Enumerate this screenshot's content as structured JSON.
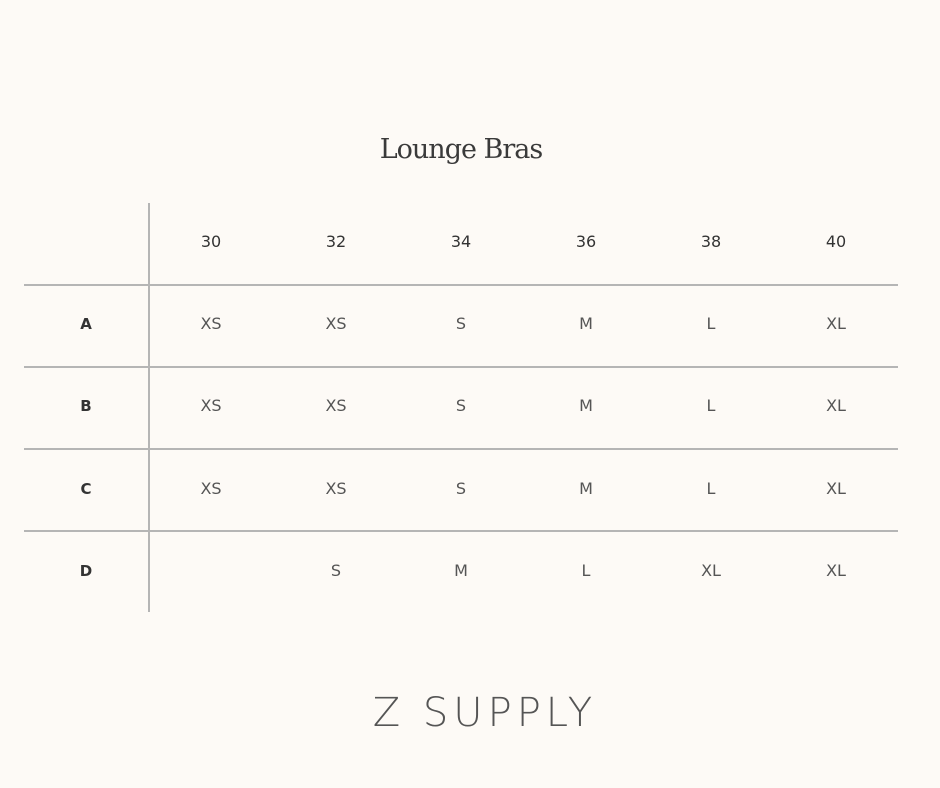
{
  "title": "Lounge Bras",
  "table": {
    "columns": [
      "30",
      "32",
      "34",
      "36",
      "38",
      "40"
    ],
    "rows": [
      {
        "label": "A",
        "cells": [
          "XS",
          "XS",
          "S",
          "M",
          "L",
          "XL"
        ]
      },
      {
        "label": "B",
        "cells": [
          "XS",
          "XS",
          "S",
          "M",
          "L",
          "XL"
        ]
      },
      {
        "label": "C",
        "cells": [
          "XS",
          "XS",
          "S",
          "M",
          "L",
          "XL"
        ]
      },
      {
        "label": "D",
        "cells": [
          "",
          "S",
          "M",
          "L",
          "XL",
          "XL"
        ]
      }
    ]
  },
  "brand": "Z SUPPLY"
}
